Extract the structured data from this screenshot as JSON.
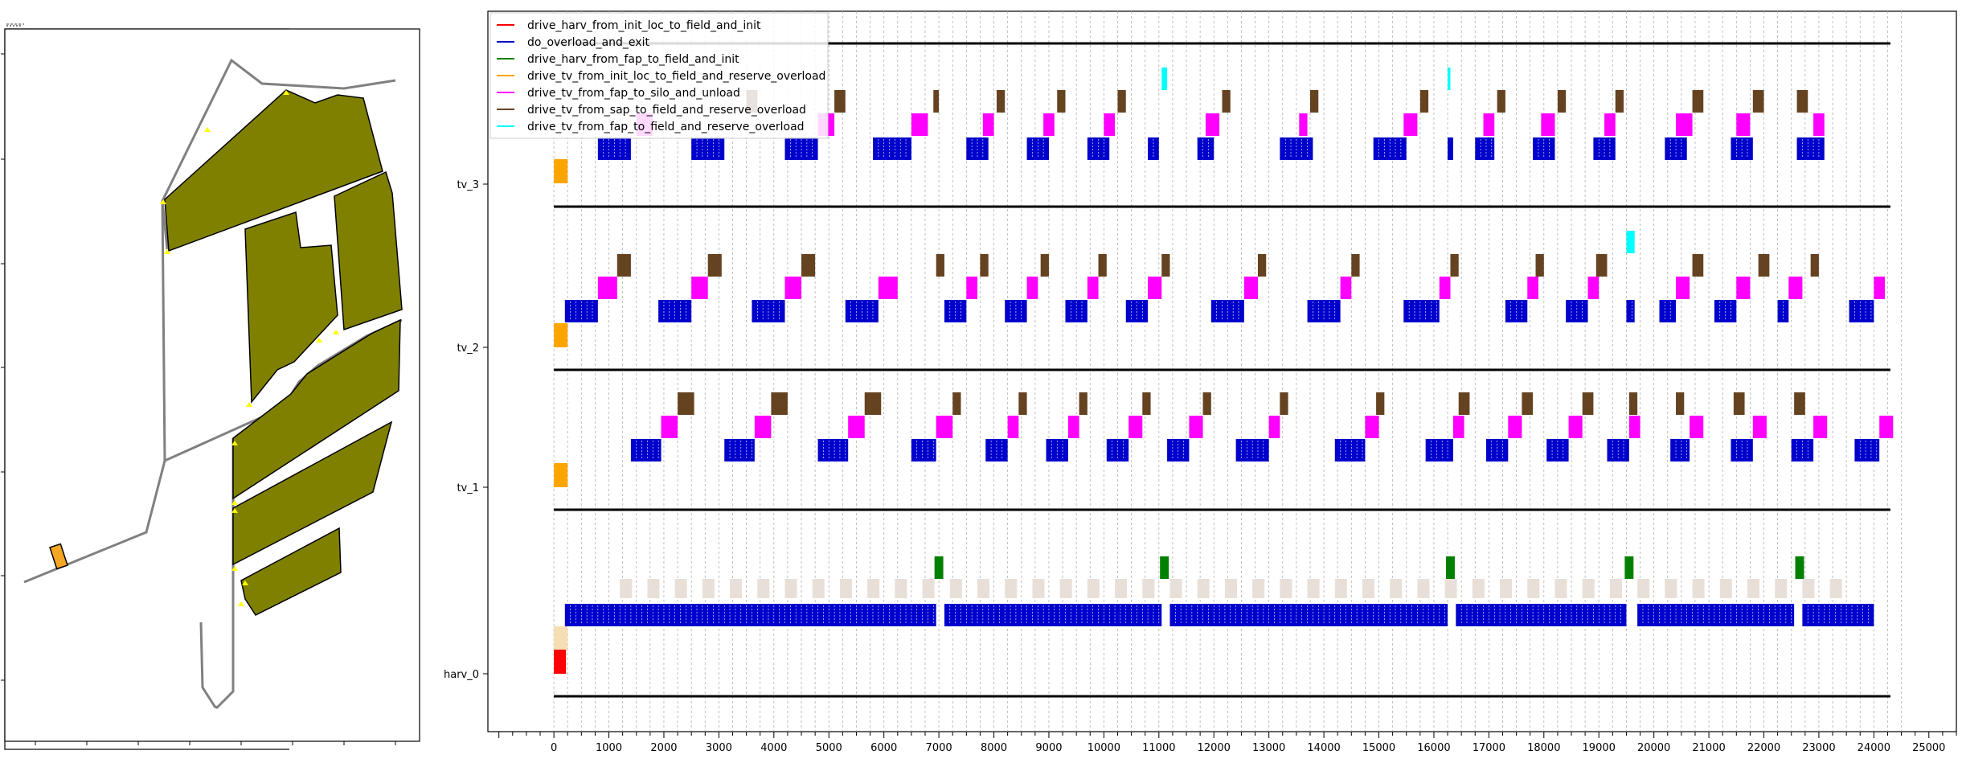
{
  "chart_data": [
    {
      "type": "map",
      "title": "",
      "colors": {
        "field": "#808000",
        "road": "#808080",
        "vehicle": "#f5a623",
        "marker": "#ffff00"
      }
    },
    {
      "type": "gantt",
      "title": "",
      "xlabel": "",
      "ylabel": "",
      "xlim": [
        -1200,
        25500
      ],
      "xticks": [
        0,
        1000,
        2000,
        3000,
        4000,
        5000,
        6000,
        7000,
        8000,
        9000,
        10000,
        11000,
        12000,
        13000,
        14000,
        15000,
        16000,
        17000,
        18000,
        19000,
        20000,
        21000,
        22000,
        23000,
        24000,
        25000
      ],
      "grid": "vertical dashed",
      "legend_position": "top-left",
      "rows": [
        "tv_3",
        "tv_2",
        "tv_1",
        "harv_0"
      ],
      "legend": [
        {
          "label": "drive_harv_from_init_loc_to_field_and_init",
          "color": "#ff0000"
        },
        {
          "label": "do_overload_and_exit",
          "color": "#0000cc"
        },
        {
          "label": "drive_harv_from_fap_to_field_and_init",
          "color": "#008000"
        },
        {
          "label": "drive_tv_from_init_loc_to_field_and_reserve_overload",
          "color": "#ffa500"
        },
        {
          "label": "drive_tv_from_fap_to_silo_and_unload",
          "color": "#ff00ff"
        },
        {
          "label": "drive_tv_from_sap_to_field_and_reserve_overload",
          "color": "#654321"
        },
        {
          "label": "drive_tv_from_fap_to_field_and_reserve_overload",
          "color": "#00ffff"
        }
      ],
      "harv_overload_segments": [
        [
          200,
          6950
        ],
        [
          7100,
          11050
        ],
        [
          11200,
          16250
        ],
        [
          16400,
          19500
        ],
        [
          19700,
          22550
        ],
        [
          22700,
          24000
        ]
      ],
      "harv_refill_markers": [
        7000,
        11100,
        16300,
        19550,
        22650
      ],
      "tv_3_cycles": [
        {
          "blue": [
            800,
            1400
          ],
          "mag": [
            1500,
            1800
          ],
          "brown": [
            3500,
            3700
          ]
        },
        {
          "blue": [
            2500,
            3100
          ],
          "mag": [
            4800,
            5100
          ],
          "brown": [
            5100,
            5300
          ]
        },
        {
          "blue": [
            4200,
            4800
          ],
          "mag": [
            6500,
            6800
          ],
          "brown": [
            6900,
            7000
          ]
        },
        {
          "blue": [
            5800,
            6500
          ],
          "mag": [
            7800,
            8000
          ],
          "brown": [
            8050,
            8200
          ]
        },
        {
          "blue": [
            7500,
            7900
          ],
          "mag": [
            8900,
            9100
          ],
          "brown": [
            9150,
            9300
          ]
        },
        {
          "blue": [
            8600,
            9000
          ],
          "mag": [
            10000,
            10200
          ],
          "brown": [
            10250,
            10400
          ]
        },
        {
          "blue": [
            9700,
            10100
          ],
          "mag": [
            11850,
            12100
          ],
          "brown": [
            12150,
            12300
          ]
        },
        {
          "blue": [
            10800,
            11000
          ],
          "mag": [
            13550,
            13700
          ],
          "brown": [
            13750,
            13900
          ]
        },
        {
          "blue": [
            11700,
            12000
          ],
          "mag": [
            15450,
            15700
          ],
          "brown": [
            15750,
            15900
          ]
        },
        {
          "blue": [
            13200,
            13800
          ],
          "mag": [
            16900,
            17100
          ],
          "brown": [
            17150,
            17300
          ]
        },
        {
          "blue": [
            14900,
            15500
          ],
          "mag": [
            17950,
            18200
          ],
          "brown": [
            18250,
            18400
          ]
        },
        {
          "blue": [
            16250,
            16350
          ],
          "mag": [
            19100,
            19300
          ],
          "brown": [
            19300,
            19450
          ]
        },
        {
          "blue": [
            16750,
            17100
          ],
          "mag": [
            20400,
            20700
          ],
          "brown": [
            20700,
            20900
          ]
        },
        {
          "blue": [
            17800,
            18200
          ],
          "mag": [
            21500,
            21750
          ],
          "brown": [
            21800,
            22000
          ]
        },
        {
          "blue": [
            18900,
            19300
          ],
          "mag": [
            22900,
            23100
          ],
          "brown": [
            22600,
            22800
          ]
        },
        {
          "blue": [
            20200,
            20600
          ],
          "mag": [
            0,
            0
          ],
          "brown": [
            0,
            0
          ]
        },
        {
          "blue": [
            21400,
            21800
          ],
          "mag": [
            0,
            0
          ],
          "brown": [
            0,
            0
          ]
        },
        {
          "blue": [
            22600,
            23100
          ],
          "mag": [
            0,
            0
          ],
          "brown": [
            0,
            0
          ]
        }
      ],
      "tv_3_cyan": [
        [
          11050,
          11150
        ],
        [
          16250,
          16300
        ]
      ],
      "tv_2_cyan": [
        [
          19500,
          19650
        ]
      ]
    }
  ]
}
